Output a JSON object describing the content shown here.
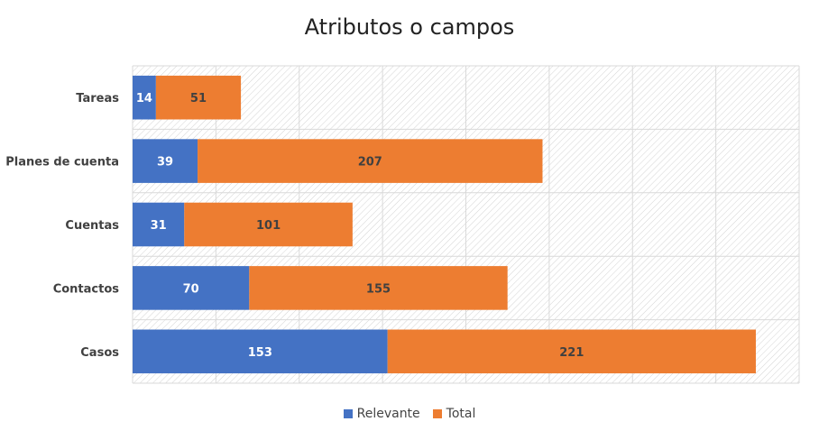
{
  "chart_data": {
    "type": "bar",
    "orientation": "horizontal",
    "stacked": true,
    "title": "Atributos o campos",
    "categories": [
      "Tareas",
      "Planes de cuenta",
      "Cuentas",
      "Contactos",
      "Casos"
    ],
    "series": [
      {
        "name": "Relevante",
        "values": [
          14,
          39,
          31,
          70,
          153
        ],
        "color": "#4472C4"
      },
      {
        "name": "Total",
        "values": [
          51,
          207,
          101,
          155,
          221
        ],
        "color": "#ED7D31"
      }
    ],
    "xlim": [
      0,
      400
    ],
    "grid": true,
    "background_pattern": "diagonal-hatch",
    "legend_position": "bottom"
  }
}
